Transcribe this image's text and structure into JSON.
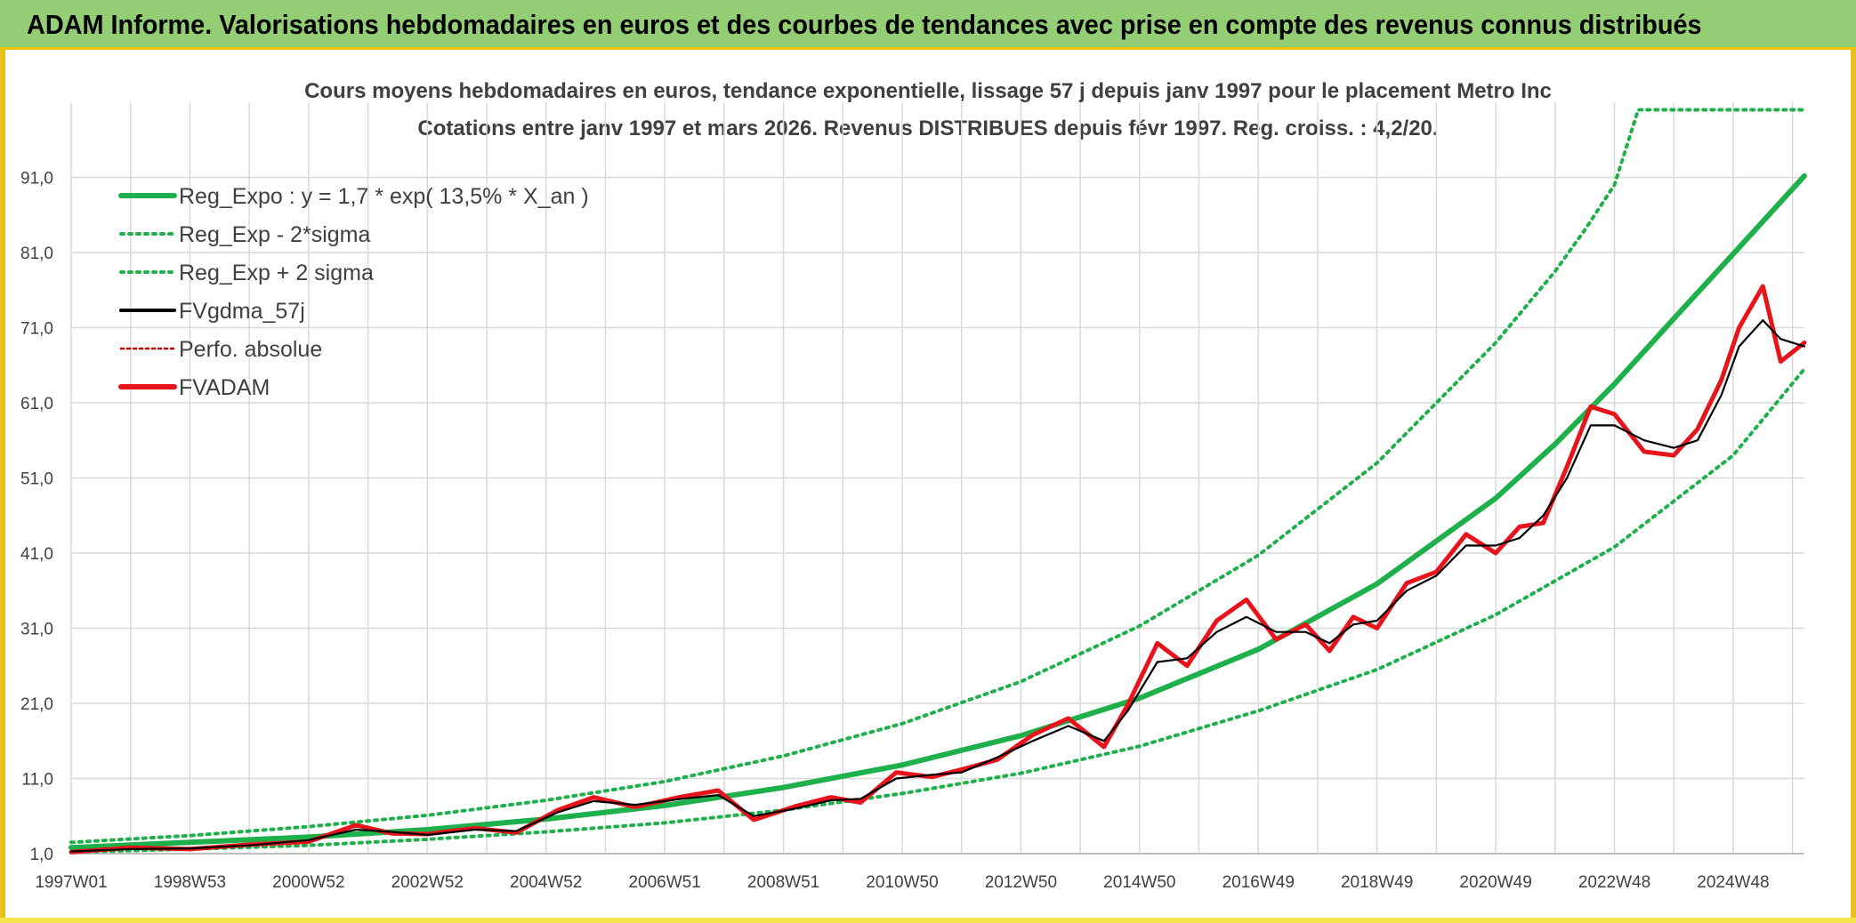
{
  "header": {
    "title": "ADAM Informe. Valorisations hebdomadaires en euros et des courbes de tendances avec prise en compte des revenus connus distribués"
  },
  "colors": {
    "banner": "#93cd74",
    "accent_yellow": "#f2c300",
    "reg_expo": "#1db04b",
    "sigma_bands": "#1db04b",
    "fvgdma": "#000000",
    "fvadam": "#e8141b",
    "perfo": "#c00000",
    "grid": "#d9d9d9"
  },
  "chart_data": {
    "type": "line",
    "title": "Cours moyens hebdomadaires en euros, tendance exponentielle, lissage 57 j depuis janv 1997 pour le placement Metro Inc",
    "subtitle": "Cotations entre janv 1997 et mars 2026. Revenus DISTRIBUES depuis févr 1997. Reg. croiss. : 4,2/20.",
    "xlabel": "",
    "ylabel": "",
    "x_range": [
      1997.0,
      2026.2
    ],
    "ylim": [
      1.0,
      101.0
    ],
    "y_ticks": [
      "1,0",
      "11,0",
      "21,0",
      "31,0",
      "41,0",
      "51,0",
      "61,0",
      "71,0",
      "81,0",
      "91,0"
    ],
    "x_tick_labels": [
      "1997W01",
      "1998W53",
      "2000W52",
      "2002W52",
      "2004W52",
      "2006W51",
      "2008W51",
      "2010W50",
      "2012W50",
      "2014W50",
      "2016W49",
      "2018W49",
      "2020W49",
      "2022W48",
      "2024W48"
    ],
    "x_tick_years": [
      1997.0,
      1999.0,
      2001.0,
      2003.0,
      2005.0,
      2007.0,
      2009.0,
      2011.0,
      2013.0,
      2015.0,
      2017.0,
      2019.0,
      2021.0,
      2023.0,
      2025.0
    ],
    "grid": true,
    "legend_position": "top-left",
    "legend": [
      {
        "name": "Reg_Expo : y = 1,7 * exp( 13,5% *  X_an )",
        "style": "solid-thick",
        "color": "#1db04b"
      },
      {
        "name": "Reg_Exp - 2*sigma",
        "style": "dotted",
        "color": "#1db04b"
      },
      {
        "name": "Reg_Exp + 2 sigma",
        "style": "dotted",
        "color": "#1db04b"
      },
      {
        "name": "FVgdma_57j",
        "style": "solid",
        "color": "#000000"
      },
      {
        "name": "Perfo. absolue",
        "style": "dotted-thin",
        "color": "#c00000"
      },
      {
        "name": "FVADAM",
        "style": "solid-thick",
        "color": "#e8141b"
      }
    ],
    "series": [
      {
        "name": "Reg_Expo : y = 1,7 * exp( 13,5% *  X_an )",
        "x": [
          1997.0,
          1999.0,
          2001.0,
          2003.0,
          2005.0,
          2007.0,
          2009.0,
          2011.0,
          2013.0,
          2015.0,
          2017.0,
          2019.0,
          2021.0,
          2022.0,
          2023.0,
          2024.0,
          2025.0,
          2026.2
        ],
        "values": [
          1.8,
          2.5,
          3.2,
          4.2,
          5.6,
          7.4,
          9.8,
          12.8,
          16.7,
          21.7,
          28.2,
          36.9,
          48.3,
          55.5,
          63.5,
          72.2,
          80.8,
          91.2
        ]
      },
      {
        "name": "Reg_Exp - 2*sigma",
        "x": [
          1997.0,
          1999.0,
          2001.0,
          2003.0,
          2005.0,
          2007.0,
          2009.0,
          2011.0,
          2013.0,
          2015.0,
          2017.0,
          2019.0,
          2021.0,
          2023.0,
          2025.0,
          2026.2
        ],
        "values": [
          1.2,
          1.6,
          2.1,
          2.9,
          3.9,
          5.1,
          6.8,
          9.0,
          11.7,
          15.3,
          20.0,
          25.5,
          32.8,
          41.8,
          54.0,
          65.5
        ]
      },
      {
        "name": "Reg_Exp + 2 sigma",
        "x": [
          1997.0,
          1999.0,
          2001.0,
          2003.0,
          2005.0,
          2007.0,
          2009.0,
          2011.0,
          2013.0,
          2015.0,
          2017.0,
          2019.0,
          2021.0,
          2022.0,
          2022.5,
          2023.0,
          2023.4,
          2024.0,
          2025.0,
          2026.2
        ],
        "values": [
          2.5,
          3.4,
          4.6,
          6.1,
          8.1,
          10.6,
          14.0,
          18.3,
          23.9,
          31.3,
          40.7,
          53.0,
          69.0,
          78.5,
          84.0,
          90.0,
          100.0,
          100.0,
          100.0,
          100.0
        ]
      },
      {
        "name": "FVgdma_57j",
        "x": [
          1997.0,
          1998.0,
          1999.0,
          2000.0,
          2001.0,
          2001.8,
          2002.4,
          2003.0,
          2003.8,
          2004.5,
          2005.2,
          2005.8,
          2006.5,
          2007.3,
          2007.9,
          2008.5,
          2009.2,
          2009.8,
          2010.3,
          2010.9,
          2011.5,
          2012.0,
          2012.6,
          2013.2,
          2013.8,
          2014.4,
          2014.8,
          2015.3,
          2015.8,
          2016.3,
          2016.8,
          2017.3,
          2017.8,
          2018.2,
          2018.6,
          2019.0,
          2019.5,
          2020.0,
          2020.5,
          2021.0,
          2021.4,
          2021.8,
          2022.2,
          2022.6,
          2023.0,
          2023.5,
          2024.0,
          2024.4,
          2024.8,
          2025.1,
          2025.5,
          2025.8,
          2026.2
        ],
        "values": [
          1.3,
          1.6,
          1.7,
          2.1,
          2.8,
          4.2,
          3.9,
          3.5,
          4.2,
          4.0,
          6.5,
          8.0,
          7.5,
          8.3,
          8.8,
          6.0,
          7.0,
          8.1,
          8.3,
          11.0,
          11.5,
          11.8,
          13.8,
          16.0,
          18.0,
          16.0,
          20.0,
          26.5,
          27.0,
          30.5,
          32.5,
          30.5,
          30.5,
          29.0,
          31.5,
          32.0,
          36.0,
          38.0,
          42.0,
          42.0,
          43.0,
          46.0,
          51.0,
          58.0,
          58.0,
          56.0,
          55.0,
          56.0,
          62.0,
          68.5,
          72.0,
          69.5,
          68.5
        ]
      },
      {
        "name": "FVADAM",
        "x": [
          1997.0,
          1998.0,
          1999.0,
          2000.0,
          2001.0,
          2001.8,
          2002.4,
          2003.0,
          2003.8,
          2004.5,
          2005.2,
          2005.8,
          2006.5,
          2007.3,
          2007.9,
          2008.5,
          2009.2,
          2009.8,
          2010.3,
          2010.9,
          2011.5,
          2012.0,
          2012.6,
          2013.2,
          2013.8,
          2014.4,
          2014.8,
          2015.3,
          2015.8,
          2016.3,
          2016.8,
          2017.3,
          2017.8,
          2018.2,
          2018.6,
          2019.0,
          2019.5,
          2020.0,
          2020.5,
          2021.0,
          2021.4,
          2021.8,
          2022.2,
          2022.6,
          2023.0,
          2023.5,
          2024.0,
          2024.4,
          2024.8,
          2025.1,
          2025.5,
          2025.8,
          2026.2
        ],
        "values": [
          1.2,
          1.8,
          1.6,
          2.2,
          2.6,
          4.8,
          3.7,
          3.6,
          4.4,
          3.8,
          6.8,
          8.5,
          7.2,
          8.6,
          9.4,
          5.5,
          7.3,
          8.5,
          7.8,
          11.8,
          11.2,
          12.2,
          13.5,
          16.8,
          19.0,
          15.2,
          20.8,
          29.0,
          26.0,
          32.0,
          34.8,
          29.5,
          31.5,
          28.0,
          32.5,
          31.0,
          37.0,
          38.5,
          43.5,
          41.0,
          44.5,
          45.0,
          52.5,
          60.5,
          59.5,
          54.5,
          54.0,
          57.5,
          64.0,
          71.0,
          76.5,
          66.5,
          69.0
        ]
      }
    ]
  }
}
